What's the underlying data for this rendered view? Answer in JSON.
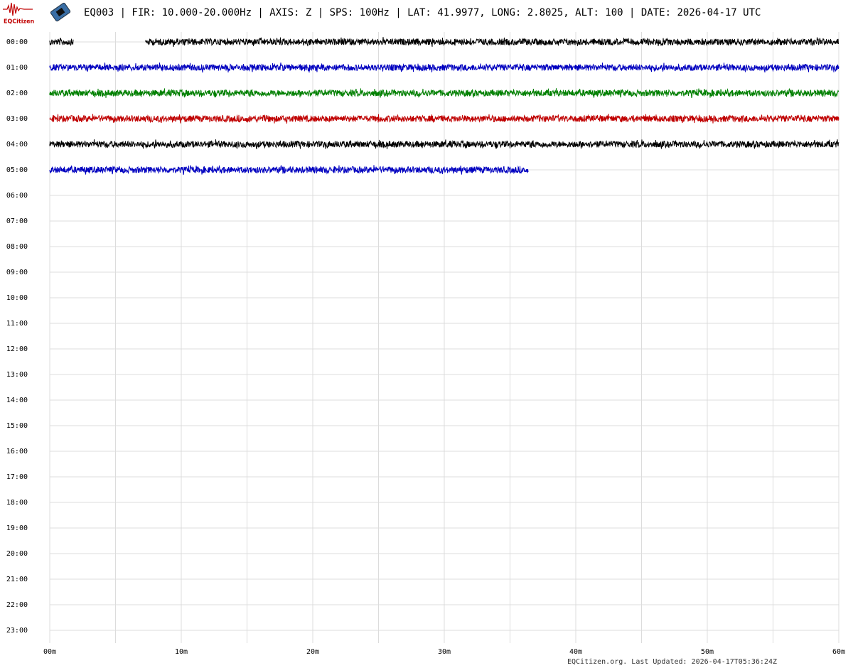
{
  "chart_data": {
    "type": "helicorder",
    "logo": "EQCitizen",
    "title": "EQ003 | FIR: 10.000-20.000Hz | AXIS: Z | SPS: 100Hz | LAT: 41.9977, LONG: 2.8025, ALT: 100 | DATE: 2026-04-17 UTC",
    "footer": "EQCitizen.org. Last Updated: 2026-04-17T05:36:24Z",
    "rows": [
      "00:00",
      "01:00",
      "02:00",
      "03:00",
      "04:00",
      "05:00",
      "06:00",
      "07:00",
      "08:00",
      "09:00",
      "10:00",
      "11:00",
      "12:00",
      "13:00",
      "14:00",
      "15:00",
      "16:00",
      "17:00",
      "18:00",
      "19:00",
      "20:00",
      "21:00",
      "22:00",
      "23:00"
    ],
    "xlim": [
      0,
      60
    ],
    "xticks": [
      {
        "value": 0,
        "label": "00m"
      },
      {
        "value": 10,
        "label": "10m"
      },
      {
        "value": 20,
        "label": "20m"
      },
      {
        "value": 30,
        "label": "30m"
      },
      {
        "value": 40,
        "label": "40m"
      },
      {
        "value": 50,
        "label": "50m"
      },
      {
        "value": 60,
        "label": "60m"
      }
    ],
    "xminorticks": [
      5,
      15,
      25,
      35,
      45,
      55
    ],
    "grid": true,
    "traces": [
      {
        "row": 0,
        "color": "#000000",
        "segments": [
          [
            0,
            1.8
          ],
          [
            7.3,
            60
          ]
        ]
      },
      {
        "row": 1,
        "color": "#0000c0",
        "segments": [
          [
            0,
            60
          ]
        ]
      },
      {
        "row": 2,
        "color": "#008000",
        "segments": [
          [
            0,
            60
          ]
        ]
      },
      {
        "row": 3,
        "color": "#c00000",
        "segments": [
          [
            0,
            60
          ]
        ]
      },
      {
        "row": 4,
        "color": "#000000",
        "segments": [
          [
            0,
            60
          ]
        ]
      },
      {
        "row": 5,
        "color": "#0000c0",
        "segments": [
          [
            0,
            36.4
          ]
        ]
      }
    ]
  }
}
